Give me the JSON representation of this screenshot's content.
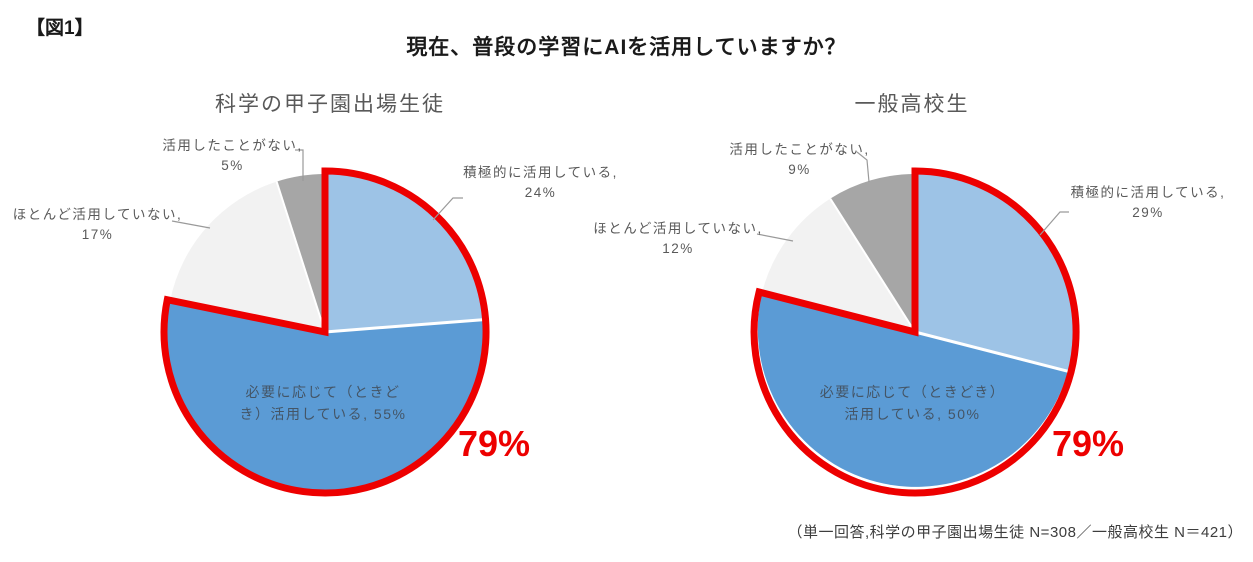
{
  "page": {
    "figure_tag": "【図1】",
    "title": "現在、普段の学習にAIを活用していますか？",
    "footnote": "（単一回答,科学の甲子園出場生徒 N=308／一般高校生 N＝421）"
  },
  "colors": {
    "highlight_red": "#ED0000",
    "label_gray": "#595959",
    "inner_label_color": "#445566",
    "leader_line": "#9a9a9a",
    "slice_light_blue": "#9DC3E6",
    "slice_medium_blue": "#5B9BD5",
    "slice_light_gray": "#F2F2F2",
    "slice_dark_gray": "#A6A6A6"
  },
  "chart_data": [
    {
      "type": "pie",
      "title": "科学の甲子園出場生徒",
      "sample_note": "N=308",
      "highlight": {
        "label": "79%",
        "value": 79,
        "covers": [
          "積極的に活用している",
          "必要に応じて（ときどき）活用している"
        ]
      },
      "slices": [
        {
          "label": "積極的に活用している",
          "value": 24,
          "color": "#9DC3E6",
          "highlighted": true,
          "callout_lines": [
            "積極的に活用している,",
            "24%"
          ]
        },
        {
          "label": "必要に応じて（ときどき）活用している",
          "value": 55,
          "color": "#5B9BD5",
          "highlighted": true,
          "inner_lines": [
            "必要に応じて（ときど",
            "き）活用している, 55%"
          ]
        },
        {
          "label": "ほとんど活用していない",
          "value": 17,
          "color": "#F2F2F2",
          "highlighted": false,
          "callout_lines": [
            "ほとんど活用していない,",
            "17%"
          ]
        },
        {
          "label": "活用したことがない",
          "value": 5,
          "color": "#A6A6A6",
          "highlighted": false,
          "callout_lines": [
            "活用したことがない,",
            "5%"
          ]
        }
      ]
    },
    {
      "type": "pie",
      "title": "一般高校生",
      "sample_note": "N=421",
      "highlight": {
        "label": "79%",
        "value": 79,
        "covers": [
          "積極的に活用している",
          "必要に応じて（ときどき）活用している"
        ]
      },
      "slices": [
        {
          "label": "積極的に活用している",
          "value": 29,
          "color": "#9DC3E6",
          "highlighted": true,
          "callout_lines": [
            "積極的に活用している,",
            "29%"
          ]
        },
        {
          "label": "必要に応じて（ときどき）活用している",
          "value": 50,
          "color": "#5B9BD5",
          "highlighted": true,
          "inner_lines": [
            "必要に応じて（ときどき）",
            "活用している, 50%"
          ]
        },
        {
          "label": "ほとんど活用していない",
          "value": 12,
          "color": "#F2F2F2",
          "highlighted": false,
          "callout_lines": [
            "ほとんど活用していない,",
            "12%"
          ]
        },
        {
          "label": "活用したことがない",
          "value": 9,
          "color": "#A6A6A6",
          "highlighted": false,
          "callout_lines": [
            "活用したことがない,",
            "9%"
          ]
        }
      ]
    }
  ]
}
